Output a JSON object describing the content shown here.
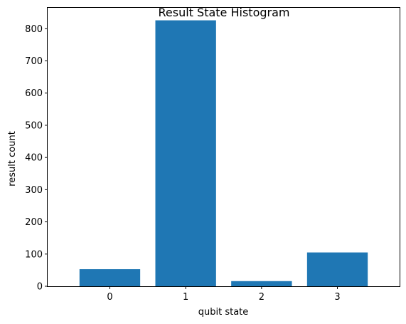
{
  "chart_data": {
    "type": "bar",
    "title": "Result State Histogram",
    "xlabel": "qubit state",
    "ylabel": "result count",
    "categories": [
      "0",
      "1",
      "2",
      "3"
    ],
    "values": [
      53,
      826,
      16,
      105
    ],
    "ylim": [
      0,
      867
    ],
    "yticks": [
      0,
      100,
      200,
      300,
      400,
      500,
      600,
      700,
      800
    ],
    "grid": false,
    "legend": "none",
    "bar_color": "#1f77b4"
  }
}
